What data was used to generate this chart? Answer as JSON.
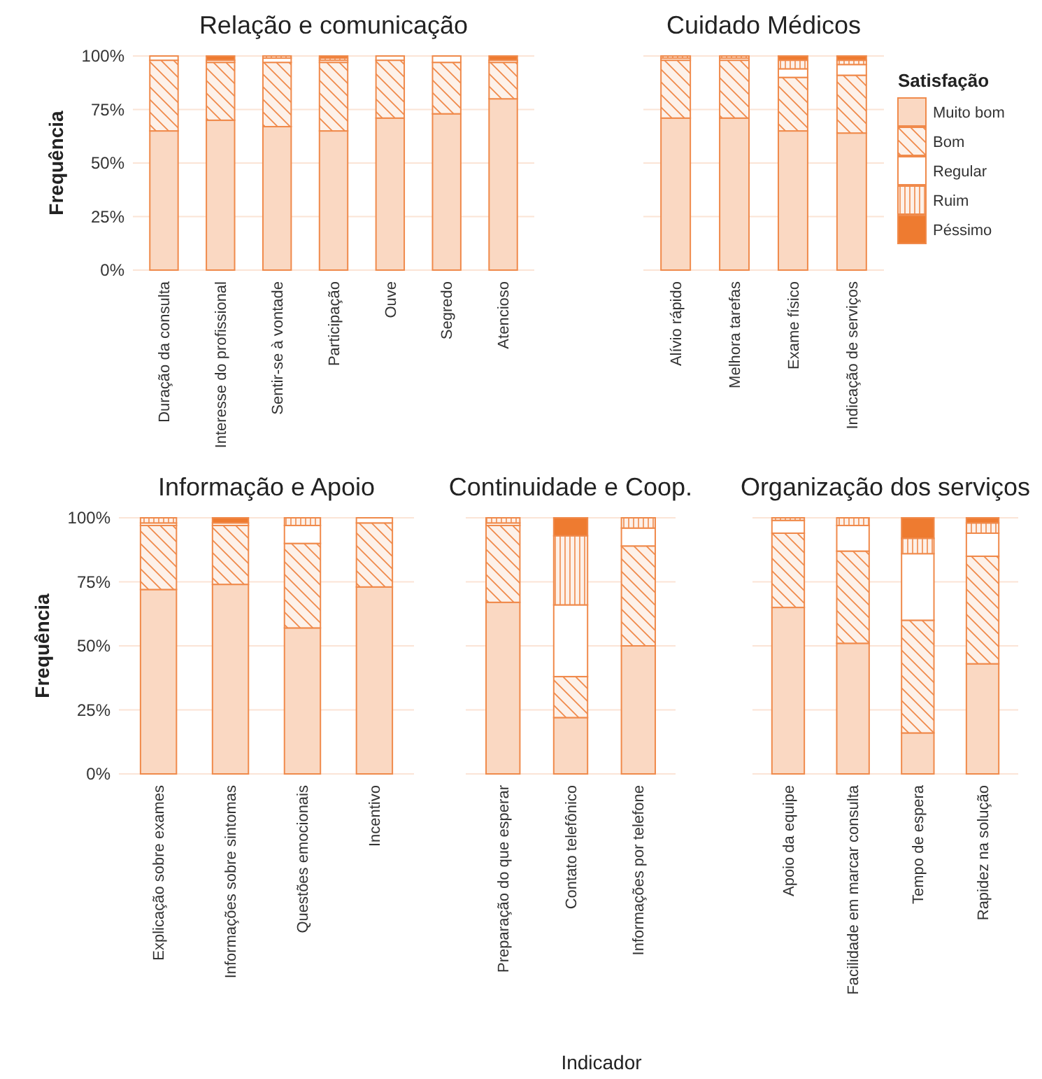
{
  "chart_data": [
    {
      "type": "bar",
      "title": "Relação e comunicação",
      "ylabel": "Frequência",
      "stacked": true,
      "grid": "y",
      "legend": false,
      "categories": [
        "Duração da consulta",
        "Interesse do profissional",
        "Sentir-se à vontade",
        "Participação",
        "Ouve",
        "Segredo",
        "Atencioso"
      ],
      "ylim": [
        0,
        100
      ],
      "yticks": [
        {
          "value": 0,
          "label": "0%"
        },
        {
          "value": 25,
          "label": "25%"
        },
        {
          "value": 50,
          "label": "50%"
        },
        {
          "value": 75,
          "label": "75%"
        },
        {
          "value": 100,
          "label": "100%"
        }
      ],
      "series": [
        {
          "color": "#fad8c2",
          "values": [
            65,
            70,
            67,
            65,
            71,
            73,
            80
          ]
        },
        {
          "color": "#f08a4b",
          "values": [
            33,
            27,
            30,
            32,
            27,
            24,
            17
          ]
        },
        {
          "color": "#ffffff",
          "values": [
            2,
            1,
            2,
            1,
            2,
            3,
            1
          ]
        },
        {
          "color": "#f08a4b",
          "values": [
            0,
            0,
            1,
            1,
            0,
            0,
            0
          ]
        },
        {
          "color": "#ee7b30",
          "values": [
            0,
            2,
            0,
            1,
            0,
            0,
            2
          ]
        }
      ]
    },
    {
      "type": "bar",
      "title": "Cuidado Médicos",
      "legend_title": "Satisfação",
      "stacked": true,
      "grid": "y",
      "legend": "right",
      "tick_labels": "x",
      "categories": [
        "Alívio rápido",
        "Melhora tarefas",
        "Exame físico",
        "Indicação de serviços"
      ],
      "ylim": [
        0,
        100
      ],
      "yticks": [
        {
          "value": 0,
          "label": null
        },
        {
          "value": 25,
          "label": null
        },
        {
          "value": 50,
          "label": null
        },
        {
          "value": 75,
          "label": null
        },
        {
          "value": 100,
          "label": null
        }
      ],
      "series": [
        {
          "name": "Muito bom",
          "color": "#fad8c2",
          "values": [
            71,
            71,
            65,
            64
          ]
        },
        {
          "name": "Bom",
          "color": "#f08a4b",
          "values": [
            27,
            27,
            25,
            27
          ]
        },
        {
          "name": "Regular",
          "color": "#ffffff",
          "values": [
            1,
            1,
            4,
            5
          ]
        },
        {
          "name": "Ruim",
          "color": "#f08a4b",
          "values": [
            1,
            1,
            4,
            2
          ]
        },
        {
          "name": "Péssimo",
          "color": "#ee7b30",
          "values": [
            0,
            0,
            2,
            2
          ]
        }
      ]
    },
    {
      "type": "bar",
      "title": "Informação e Apoio",
      "ylabel": "Frequência",
      "stacked": true,
      "grid": "y",
      "legend": false,
      "categories": [
        "Explicação sobre exames",
        "Informações sobre sintomas",
        "Questões emocionais",
        "Incentivo"
      ],
      "ylim": [
        0,
        100
      ],
      "yticks": [
        {
          "value": 0,
          "label": "0%"
        },
        {
          "value": 25,
          "label": "25%"
        },
        {
          "value": 50,
          "label": "50%"
        },
        {
          "value": 75,
          "label": "75%"
        },
        {
          "value": 100,
          "label": "100%"
        }
      ],
      "series": [
        {
          "color": "#fad8c2",
          "values": [
            72,
            74,
            57,
            73
          ]
        },
        {
          "color": "#f08a4b",
          "values": [
            25,
            23,
            33,
            25
          ]
        },
        {
          "color": "#ffffff",
          "values": [
            1,
            1,
            7,
            2
          ]
        },
        {
          "color": "#f08a4b",
          "values": [
            2,
            0,
            3,
            0
          ]
        },
        {
          "color": "#ee7b30",
          "values": [
            0,
            2,
            0,
            0
          ]
        }
      ]
    },
    {
      "type": "bar",
      "title": "Continuidade e Coop.",
      "xlabel": "Indicador",
      "stacked": true,
      "grid": "y",
      "legend": false,
      "tick_labels": "x",
      "categories": [
        "Preparação do que esperar",
        "Contato telefônico",
        "Informações por telefone"
      ],
      "ylim": [
        0,
        100
      ],
      "yticks": [
        {
          "value": 0,
          "label": null
        },
        {
          "value": 25,
          "label": null
        },
        {
          "value": 50,
          "label": null
        },
        {
          "value": 75,
          "label": null
        },
        {
          "value": 100,
          "label": null
        }
      ],
      "series": [
        {
          "color": "#fad8c2",
          "values": [
            67,
            22,
            50
          ]
        },
        {
          "color": "#f08a4b",
          "values": [
            30,
            16,
            39
          ]
        },
        {
          "color": "#ffffff",
          "values": [
            1,
            28,
            7
          ]
        },
        {
          "color": "#f08a4b",
          "values": [
            2,
            27,
            4
          ]
        },
        {
          "color": "#ee7b30",
          "values": [
            0,
            7,
            0
          ]
        }
      ]
    },
    {
      "type": "bar",
      "title": "Organização dos serviços",
      "stacked": true,
      "grid": "y",
      "legend": false,
      "tick_labels": "x",
      "categories": [
        "Apoio da equipe",
        "Facilidade em marcar consulta",
        "Tempo de espera",
        "Rapidez na solução"
      ],
      "ylim": [
        0,
        100
      ],
      "yticks": [
        {
          "value": 0,
          "label": null
        },
        {
          "value": 25,
          "label": null
        },
        {
          "value": 50,
          "label": null
        },
        {
          "value": 75,
          "label": null
        },
        {
          "value": 100,
          "label": null
        }
      ],
      "series": [
        {
          "color": "#fad8c2",
          "values": [
            65,
            51,
            16,
            43
          ]
        },
        {
          "color": "#f08a4b",
          "values": [
            29,
            36,
            44,
            42
          ]
        },
        {
          "color": "#ffffff",
          "values": [
            5,
            10,
            26,
            9
          ]
        },
        {
          "color": "#f08a4b",
          "values": [
            1,
            3,
            6,
            4
          ]
        },
        {
          "color": "#ee7b30",
          "values": [
            0,
            0,
            8,
            2
          ]
        }
      ]
    }
  ]
}
